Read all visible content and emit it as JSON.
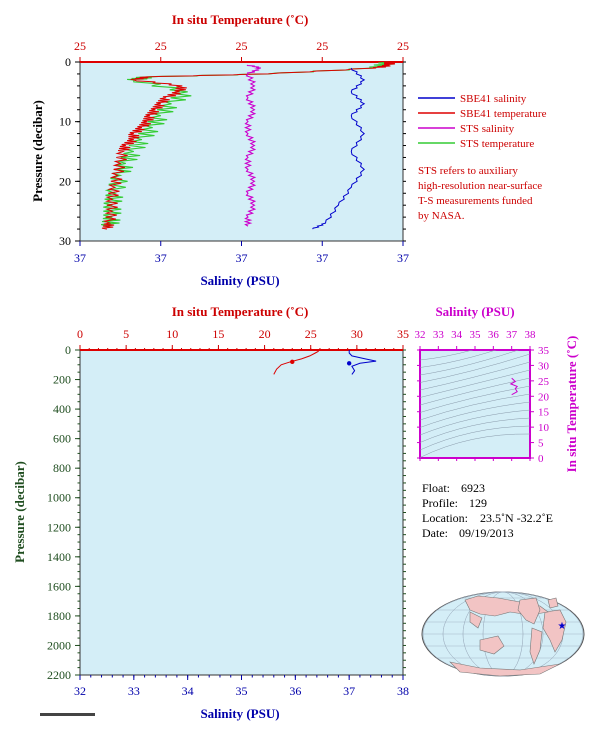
{
  "top_panel": {
    "temp_axis_label": "In situ Temperature (˚C)",
    "temp_ticks": [
      "25",
      "25",
      "25",
      "25",
      "25"
    ],
    "pressure_label": "Pressure (decibar)",
    "pressure_ticks": [
      "0",
      "10",
      "20",
      "30"
    ],
    "salinity_label": "Salinity (PSU)",
    "salinity_ticks": [
      "37",
      "37",
      "37",
      "37",
      "37"
    ],
    "legend": [
      {
        "label": "SBE41 salinity",
        "color": "#0000cc"
      },
      {
        "label": "SBE41 temperature",
        "color": "#dd0000"
      },
      {
        "label": "STS salinity",
        "color": "#cc00cc"
      },
      {
        "label": "STS temperature",
        "color": "#33cc33"
      }
    ],
    "note_lines": [
      "STS refers to auxiliary",
      "high-resolution near-surface",
      "T-S measurements funded",
      "by NASA."
    ]
  },
  "bottom_panel": {
    "temp_axis_label": "In situ Temperature (˚C)",
    "temp_ticks": [
      "0",
      "5",
      "10",
      "15",
      "20",
      "25",
      "30",
      "35"
    ],
    "pressure_label": "Pressure (decibar)",
    "pressure_ticks": [
      "0",
      "200",
      "400",
      "600",
      "800",
      "1000",
      "1200",
      "1400",
      "1600",
      "1800",
      "2000",
      "2200"
    ],
    "salinity_label": "Salinity (PSU)",
    "salinity_ticks": [
      "32",
      "33",
      "34",
      "35",
      "36",
      "37",
      "38"
    ]
  },
  "ts_panel": {
    "salinity_label": "Salinity (PSU)",
    "salinity_ticks": [
      "32",
      "33",
      "34",
      "35",
      "36",
      "37",
      "38"
    ],
    "temp_label": "In situ Temperature (˚C)",
    "temp_ticks": [
      "0",
      "5",
      "10",
      "15",
      "20",
      "25",
      "30",
      "35"
    ]
  },
  "info": {
    "float_label": "Float:",
    "float_value": "6923",
    "profile_label": "Profile:",
    "profile_value": "129",
    "location_label": "Location:",
    "location_value": "23.5˚N  -32.2˚E",
    "date_label": "Date:",
    "date_value": "09/19/2013"
  },
  "colors": {
    "plot_bg": "#d4eef7",
    "temperature": "#dd0000",
    "salinity": "#0000cc",
    "sts_salinity": "#cc00cc",
    "sts_temperature": "#33cc33",
    "ts_axis": "#cc00cc",
    "map_land": "#f2c4c4",
    "map_ocean": "#d4eef7"
  },
  "chart_data": [
    {
      "type": "line",
      "panel": "top",
      "pressure_range": [
        0,
        30
      ],
      "series": [
        {
          "name": "SBE41 temperature",
          "points": [
            [
              25.95,
              0
            ],
            [
              25.95,
              0.5
            ],
            [
              25.9,
              1
            ],
            [
              25.5,
              2
            ],
            [
              25.05,
              2.5
            ],
            [
              25.0,
              3
            ],
            [
              25.18,
              4
            ],
            [
              25.17,
              5
            ],
            [
              25.12,
              6
            ],
            [
              25.1,
              7
            ],
            [
              25.08,
              8
            ],
            [
              25.06,
              9
            ],
            [
              25.05,
              10
            ],
            [
              25.03,
              11
            ],
            [
              25.0,
              12
            ],
            [
              25.0,
              13
            ],
            [
              24.97,
              14
            ],
            [
              24.96,
              15
            ],
            [
              24.95,
              17
            ],
            [
              24.94,
              19
            ],
            [
              24.93,
              21
            ],
            [
              24.92,
              23
            ],
            [
              24.92,
              25
            ],
            [
              24.91,
              27
            ],
            [
              24.9,
              28
            ]
          ]
        },
        {
          "name": "SBE41 salinity",
          "points": [
            [
              36.96,
              1
            ],
            [
              36.97,
              3
            ],
            [
              36.96,
              5
            ],
            [
              36.97,
              7
            ],
            [
              36.96,
              9
            ],
            [
              36.97,
              12
            ],
            [
              36.96,
              15
            ],
            [
              36.97,
              18
            ],
            [
              36.96,
              21
            ],
            [
              36.95,
              24
            ],
            [
              36.94,
              27
            ],
            [
              36.93,
              28
            ]
          ]
        },
        {
          "name": "STS salinity",
          "points": [
            [
              36.88,
              0.5
            ],
            [
              36.89,
              1
            ],
            [
              36.88,
              2
            ],
            [
              36.885,
              4
            ],
            [
              36.88,
              6
            ],
            [
              36.885,
              8
            ],
            [
              36.88,
              10
            ],
            [
              36.88,
              12
            ],
            [
              36.885,
              14
            ],
            [
              36.88,
              16
            ],
            [
              36.88,
              18
            ],
            [
              36.885,
              20
            ],
            [
              36.88,
              22
            ],
            [
              36.885,
              24
            ],
            [
              36.88,
              26
            ],
            [
              36.88,
              27.5
            ]
          ]
        },
        {
          "name": "STS temperature",
          "points": [
            [
              25.95,
              0
            ],
            [
              25.9,
              1
            ],
            [
              25.5,
              2
            ],
            [
              25.05,
              2.5
            ],
            [
              25.0,
              3
            ],
            [
              25.2,
              5
            ],
            [
              25.14,
              7
            ],
            [
              25.1,
              9
            ],
            [
              25.07,
              11
            ],
            [
              25.03,
              13
            ],
            [
              25.0,
              15
            ],
            [
              24.97,
              17
            ],
            [
              24.95,
              19
            ],
            [
              24.93,
              22
            ],
            [
              24.92,
              24
            ],
            [
              24.92,
              26
            ],
            [
              24.91,
              27.5
            ]
          ]
        }
      ]
    },
    {
      "type": "line",
      "panel": "bottom",
      "temperature_range": [
        0,
        35
      ],
      "salinity_range": [
        32,
        38
      ],
      "pressure_range": [
        0,
        2200
      ],
      "series": [
        {
          "name": "temperature",
          "points": [
            [
              25.9,
              0
            ],
            [
              25.8,
              10
            ],
            [
              25.5,
              20
            ],
            [
              24.9,
              40
            ],
            [
              24.0,
              60
            ],
            [
              22.8,
              80
            ],
            [
              21.8,
              100
            ],
            [
              21.3,
              130
            ],
            [
              21.0,
              165
            ]
          ]
        },
        {
          "name": "salinity",
          "points": [
            [
              37.0,
              0
            ],
            [
              37.0,
              20
            ],
            [
              37.05,
              40
            ],
            [
              37.3,
              60
            ],
            [
              37.5,
              75
            ],
            [
              37.2,
              90
            ],
            [
              37.05,
              110
            ],
            [
              37.1,
              140
            ],
            [
              37.05,
              165
            ]
          ]
        }
      ],
      "markers": [
        {
          "name": "temperature",
          "x": 23.0,
          "y": 80
        },
        {
          "name": "salinity",
          "x": 37.0,
          "y": 90
        }
      ]
    },
    {
      "type": "scatter",
      "panel": "ts",
      "xlim": [
        32,
        38
      ],
      "ylim": [
        0,
        35
      ],
      "series": [
        {
          "name": "ts",
          "points": [
            [
              37.0,
              20.5
            ],
            [
              37.3,
              21.5
            ],
            [
              37.2,
              22.5
            ],
            [
              37.3,
              23.2
            ],
            [
              36.95,
              24.0
            ],
            [
              37.2,
              24.8
            ],
            [
              37.0,
              25.9
            ]
          ]
        }
      ]
    }
  ],
  "map": {
    "marker": {
      "lat": 23.5,
      "lon": -32.2
    }
  }
}
